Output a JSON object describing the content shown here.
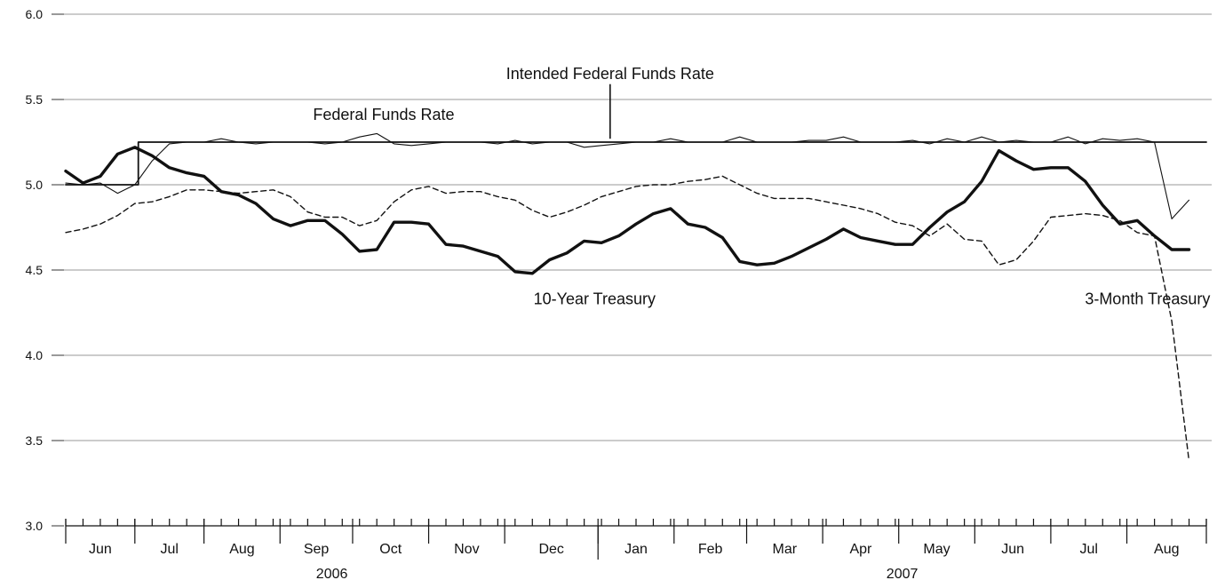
{
  "chart_data": {
    "type": "line",
    "title": "",
    "xlabel": "",
    "ylabel": "",
    "ylim": [
      3.0,
      6.0
    ],
    "y_ticks": [
      "3.0",
      "3.5",
      "4.0",
      "4.5",
      "5.0",
      "5.5",
      "6.0"
    ],
    "grid": true,
    "x_range_weeks": [
      0,
      66
    ],
    "months": [
      {
        "label": "Jun",
        "start": 0,
        "end": 4
      },
      {
        "label": "Jul",
        "start": 4,
        "end": 8
      },
      {
        "label": "Aug",
        "start": 8,
        "end": 12.4
      },
      {
        "label": "Sep",
        "start": 12.4,
        "end": 16.6
      },
      {
        "label": "Oct",
        "start": 16.6,
        "end": 21
      },
      {
        "label": "Nov",
        "start": 21,
        "end": 25.4
      },
      {
        "label": "Dec",
        "start": 25.4,
        "end": 30.8
      },
      {
        "label": "Jan",
        "start": 30.8,
        "end": 35.2
      },
      {
        "label": "Feb",
        "start": 35.2,
        "end": 39.4
      },
      {
        "label": "Mar",
        "start": 39.4,
        "end": 43.8
      },
      {
        "label": "Apr",
        "start": 43.8,
        "end": 48.2
      },
      {
        "label": "May",
        "start": 48.2,
        "end": 52.6
      },
      {
        "label": "Jun",
        "start": 52.6,
        "end": 57
      },
      {
        "label": "Jul",
        "start": 57,
        "end": 61.4
      },
      {
        "label": "Aug",
        "start": 61.4,
        "end": 66
      }
    ],
    "years": [
      {
        "label": "2006",
        "center": 15.4
      },
      {
        "label": "2007",
        "center": 48.4
      }
    ],
    "annotations": [
      {
        "text": "Intended Federal Funds Rate",
        "x": 31.5,
        "y": 5.62,
        "pointer": {
          "x": 31.5,
          "y_from": 5.59,
          "y_to": 5.27
        }
      },
      {
        "text": "Federal Funds Rate",
        "x": 18.4,
        "y": 5.38
      },
      {
        "text": "10-Year Treasury",
        "x": 30.6,
        "y": 4.3
      },
      {
        "text": "3-Month Treasury",
        "x": 62.6,
        "y": 4.3
      }
    ],
    "series": [
      {
        "name": "Intended Federal Funds Rate",
        "style": "step",
        "color": "#111111",
        "x": [
          0,
          4.2,
          4.2,
          63.5,
          63.5,
          65.2,
          66
        ],
        "y": [
          5.0,
          5.0,
          5.25,
          5.25,
          5.25,
          5.25,
          5.25
        ]
      },
      {
        "name": "Federal Funds Rate",
        "style": "thin",
        "color": "#111111",
        "x": [
          0,
          1,
          2,
          3,
          4,
          5,
          6,
          7,
          8,
          9,
          10,
          11,
          12,
          13,
          14,
          15,
          16,
          17,
          18,
          19,
          20,
          21,
          22,
          23,
          24,
          25,
          26,
          27,
          28,
          29,
          30,
          31,
          32,
          33,
          34,
          35,
          36,
          37,
          38,
          39,
          40,
          41,
          42,
          43,
          44,
          45,
          46,
          47,
          48,
          49,
          50,
          51,
          52,
          53,
          54,
          55,
          56,
          57,
          58,
          59,
          60,
          61,
          62,
          63,
          64,
          65
        ],
        "y": [
          5.01,
          5.0,
          5.01,
          4.95,
          5.0,
          5.14,
          5.24,
          5.25,
          5.25,
          5.27,
          5.25,
          5.24,
          5.25,
          5.25,
          5.25,
          5.24,
          5.25,
          5.28,
          5.3,
          5.24,
          5.23,
          5.24,
          5.25,
          5.25,
          5.25,
          5.24,
          5.26,
          5.24,
          5.25,
          5.25,
          5.22,
          5.23,
          5.24,
          5.25,
          5.25,
          5.27,
          5.25,
          5.25,
          5.25,
          5.28,
          5.25,
          5.25,
          5.25,
          5.26,
          5.26,
          5.28,
          5.25,
          5.25,
          5.25,
          5.26,
          5.24,
          5.27,
          5.25,
          5.28,
          5.25,
          5.26,
          5.25,
          5.25,
          5.28,
          5.24,
          5.27,
          5.26,
          5.27,
          5.25,
          4.8,
          4.91
        ]
      },
      {
        "name": "10-Year Treasury",
        "style": "bold",
        "color": "#111111",
        "x": [
          0,
          1,
          2,
          3,
          4,
          5,
          6,
          7,
          8,
          9,
          10,
          11,
          12,
          13,
          14,
          15,
          16,
          17,
          18,
          19,
          20,
          21,
          22,
          23,
          24,
          25,
          26,
          27,
          28,
          29,
          30,
          31,
          32,
          33,
          34,
          35,
          36,
          37,
          38,
          39,
          40,
          41,
          42,
          43,
          44,
          45,
          46,
          47,
          48,
          49,
          50,
          51,
          52,
          53,
          54,
          55,
          56,
          57,
          58,
          59,
          60,
          61,
          62,
          63,
          64,
          65
        ],
        "y": [
          5.08,
          5.01,
          5.05,
          5.18,
          5.22,
          5.17,
          5.1,
          5.07,
          5.05,
          4.96,
          4.94,
          4.89,
          4.8,
          4.76,
          4.79,
          4.79,
          4.71,
          4.61,
          4.62,
          4.78,
          4.78,
          4.77,
          4.65,
          4.64,
          4.61,
          4.58,
          4.49,
          4.48,
          4.56,
          4.6,
          4.67,
          4.66,
          4.7,
          4.77,
          4.83,
          4.86,
          4.77,
          4.75,
          4.69,
          4.55,
          4.53,
          4.54,
          4.58,
          4.63,
          4.68,
          4.74,
          4.69,
          4.67,
          4.65,
          4.65,
          4.75,
          4.84,
          4.9,
          5.02,
          5.2,
          5.14,
          5.09,
          5.1,
          5.1,
          5.02,
          4.88,
          4.77,
          4.79,
          4.7,
          4.62,
          4.62
        ]
      },
      {
        "name": "3-Month Treasury",
        "style": "dashed",
        "color": "#111111",
        "x": [
          0,
          1,
          2,
          3,
          4,
          5,
          6,
          7,
          8,
          9,
          10,
          11,
          12,
          13,
          14,
          15,
          16,
          17,
          18,
          19,
          20,
          21,
          22,
          23,
          24,
          25,
          26,
          27,
          28,
          29,
          30,
          31,
          32,
          33,
          34,
          35,
          36,
          37,
          38,
          39,
          40,
          41,
          42,
          43,
          44,
          45,
          46,
          47,
          48,
          49,
          50,
          51,
          52,
          53,
          54,
          55,
          56,
          57,
          58,
          59,
          60,
          61,
          62,
          63,
          64,
          65
        ],
        "y": [
          4.72,
          4.74,
          4.77,
          4.82,
          4.89,
          4.9,
          4.93,
          4.97,
          4.97,
          4.96,
          4.95,
          4.96,
          4.97,
          4.93,
          4.84,
          4.81,
          4.81,
          4.76,
          4.79,
          4.9,
          4.97,
          4.99,
          4.95,
          4.96,
          4.96,
          4.93,
          4.91,
          4.85,
          4.81,
          4.84,
          4.88,
          4.93,
          4.96,
          4.99,
          5.0,
          5.0,
          5.02,
          5.03,
          5.05,
          5.0,
          4.95,
          4.92,
          4.92,
          4.92,
          4.9,
          4.88,
          4.86,
          4.83,
          4.78,
          4.76,
          4.7,
          4.77,
          4.68,
          4.67,
          4.53,
          4.56,
          4.67,
          4.81,
          4.82,
          4.83,
          4.82,
          4.79,
          4.72,
          4.7,
          4.2,
          3.38
        ]
      }
    ]
  }
}
